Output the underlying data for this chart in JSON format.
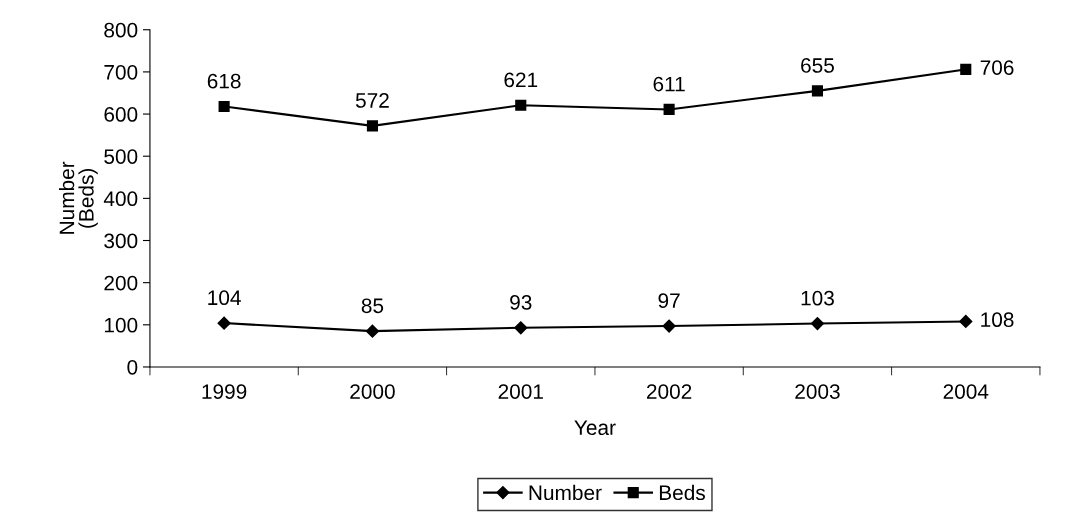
{
  "chart_data": {
    "type": "line",
    "xlabel": "Year",
    "ylabel": "Number\n(Beds)",
    "categories": [
      "1999",
      "2000",
      "2001",
      "2002",
      "2003",
      "2004"
    ],
    "series": [
      {
        "name": "Number",
        "color": "#000000",
        "marker": "diamond",
        "values": [
          104,
          85,
          93,
          97,
          103,
          108
        ]
      },
      {
        "name": "Beds",
        "color": "#000000",
        "marker": "square",
        "values": [
          618,
          572,
          621,
          611,
          655,
          706
        ]
      }
    ],
    "ylim": [
      0,
      800
    ],
    "yticks": [
      0,
      100,
      200,
      300,
      400,
      500,
      600,
      700,
      800
    ],
    "data_labels": true,
    "legend": "bottom",
    "grid": false,
    "line_style": "solid"
  }
}
